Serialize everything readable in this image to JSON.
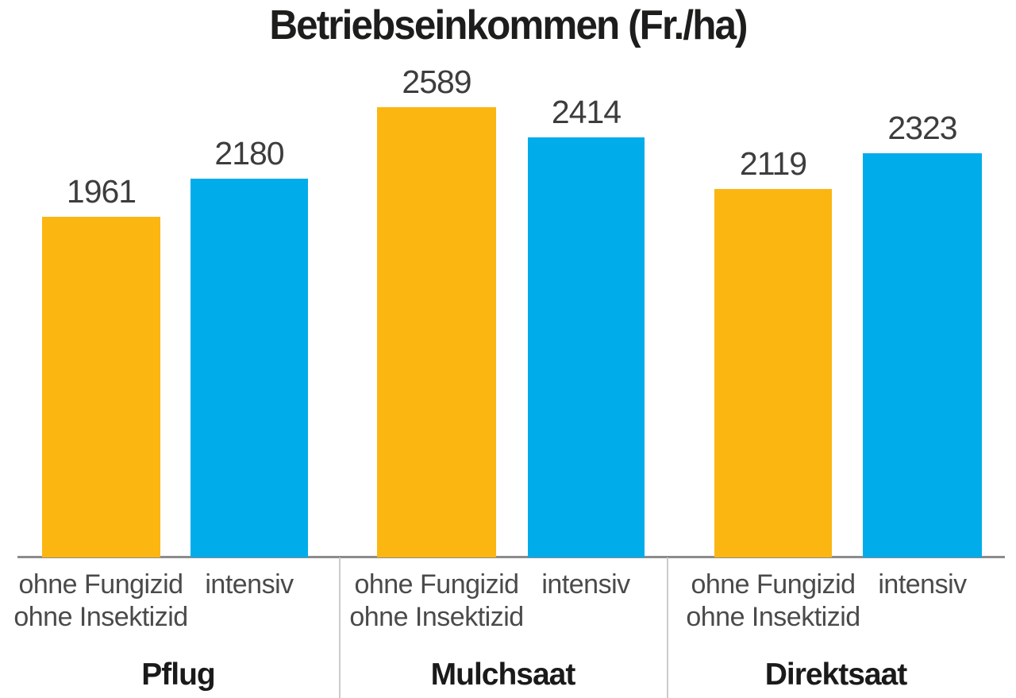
{
  "chart_data": {
    "type": "bar",
    "title": "Betriebseinkommen (Fr./ha)",
    "ylabel": "",
    "xlabel": "",
    "baseline": 0,
    "grid": false,
    "legend_position": "none",
    "series": [
      {
        "name": "ohne Fungizid ohne Insektizid",
        "color": "#FBB612"
      },
      {
        "name": "intensiv",
        "color": "#00ACEA"
      }
    ],
    "groups": [
      {
        "label": "Pflug",
        "bars": [
          {
            "series_label": "ohne Fungizid\nohne Insektizid",
            "value": 1961
          },
          {
            "series_label": "intensiv",
            "value": 2180
          }
        ]
      },
      {
        "label": "Mulchsaat",
        "bars": [
          {
            "series_label": "ohne Fungizid\nohne Insektizid",
            "value": 2589
          },
          {
            "series_label": "intensiv",
            "value": 2414
          }
        ]
      },
      {
        "label": "Direktsaat",
        "bars": [
          {
            "series_label": "ohne Fungizid\nohne Insektizid",
            "value": 2119
          },
          {
            "series_label": "intensiv",
            "value": 2323
          }
        ]
      }
    ]
  }
}
